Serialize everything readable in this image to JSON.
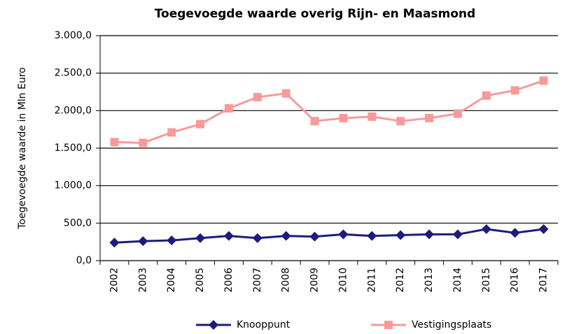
{
  "chart_data": {
    "type": "line",
    "title": "Toegevoegde waarde overig Rijn-  en Maasmond",
    "y_label": "Toegevoegde waarde in Mln Euro",
    "categories": [
      "2002",
      "2003",
      "2004",
      "2005",
      "2006",
      "2007",
      "2008",
      "2009",
      "2010",
      "2011",
      "2012",
      "2013",
      "2014",
      "2015",
      "2016",
      "2017"
    ],
    "series": [
      {
        "name": "Knooppunt",
        "color": "#1c1c7c",
        "marker": "diamond",
        "values": [
          240,
          260,
          270,
          300,
          330,
          300,
          330,
          320,
          350,
          330,
          340,
          350,
          350,
          420,
          370,
          420
        ]
      },
      {
        "name": "Vestigingsplaats",
        "color": "#f99a9a",
        "marker": "square",
        "values": [
          1580,
          1570,
          1710,
          1820,
          2030,
          2180,
          2230,
          1860,
          1900,
          1920,
          1860,
          1900,
          1960,
          2200,
          2270,
          2400
        ]
      }
    ],
    "ylim": [
      0,
      3000
    ],
    "yticks": [
      {
        "value": 0,
        "label": "0,0"
      },
      {
        "value": 500,
        "label": "500,0"
      },
      {
        "value": 1000,
        "label": "1.000,0"
      },
      {
        "value": 1500,
        "label": "1.500,0"
      },
      {
        "value": 2000,
        "label": "2.000,0"
      },
      {
        "value": 2500,
        "label": "2.500,0"
      },
      {
        "value": 3000,
        "label": "3.000,0"
      }
    ],
    "grid": true,
    "legend": "bottom"
  }
}
